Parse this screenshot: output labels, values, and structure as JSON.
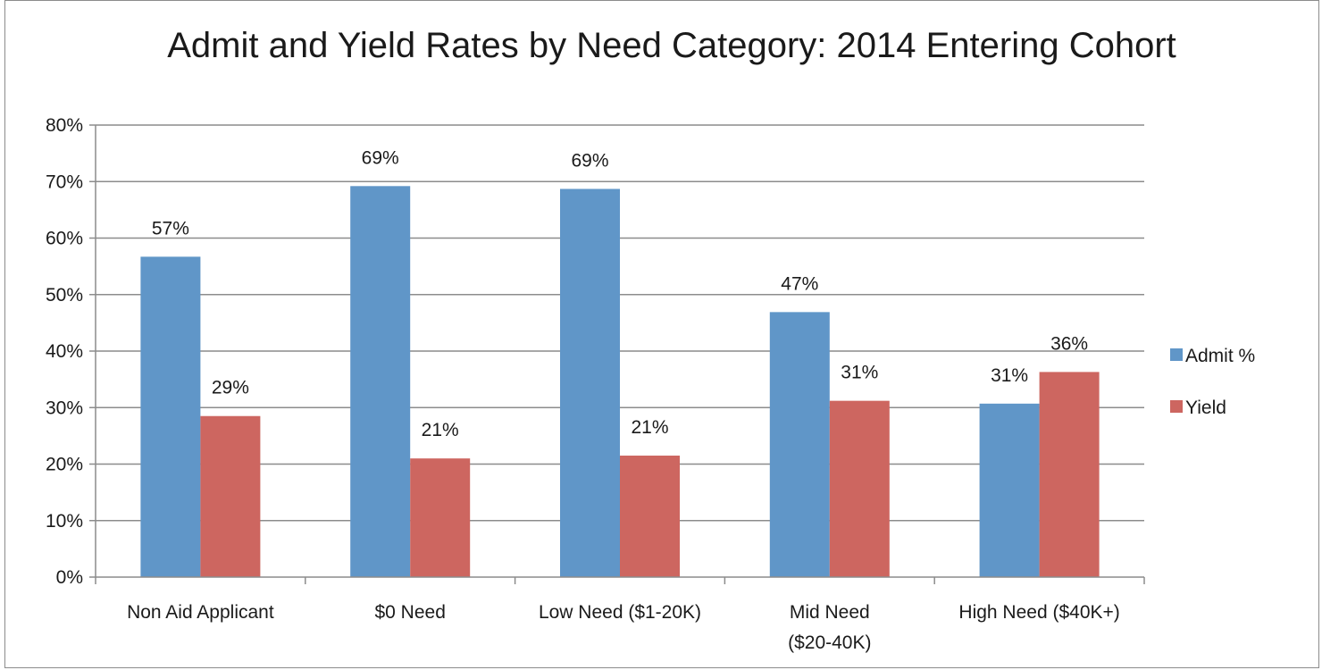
{
  "chart_data": {
    "type": "bar",
    "title": "Admit and Yield Rates by Need Category: 2014 Entering Cohort",
    "categories": [
      [
        "Non Aid Applicant"
      ],
      [
        "$0 Need"
      ],
      [
        "Low Need ($1-20K)"
      ],
      [
        "Mid Need",
        "($20-40K)"
      ],
      [
        "High Need ($40K+)"
      ]
    ],
    "series": [
      {
        "name": "Admit %",
        "color": "#6096C8",
        "values": [
          0.567,
          0.692,
          0.687,
          0.469,
          0.307
        ],
        "labels": [
          "57%",
          "69%",
          "69%",
          "47%",
          "31%"
        ]
      },
      {
        "name": "Yield",
        "color": "#CD6660",
        "values": [
          0.285,
          0.21,
          0.215,
          0.312,
          0.363
        ],
        "labels": [
          "29%",
          "21%",
          "21%",
          "31%",
          "36%"
        ]
      }
    ],
    "ylim": [
      0,
      0.8
    ],
    "yticks": [
      "0%",
      "10%",
      "20%",
      "30%",
      "40%",
      "50%",
      "60%",
      "70%",
      "80%"
    ],
    "grid": true,
    "legend_position": "right",
    "xlabel": "",
    "ylabel": ""
  }
}
